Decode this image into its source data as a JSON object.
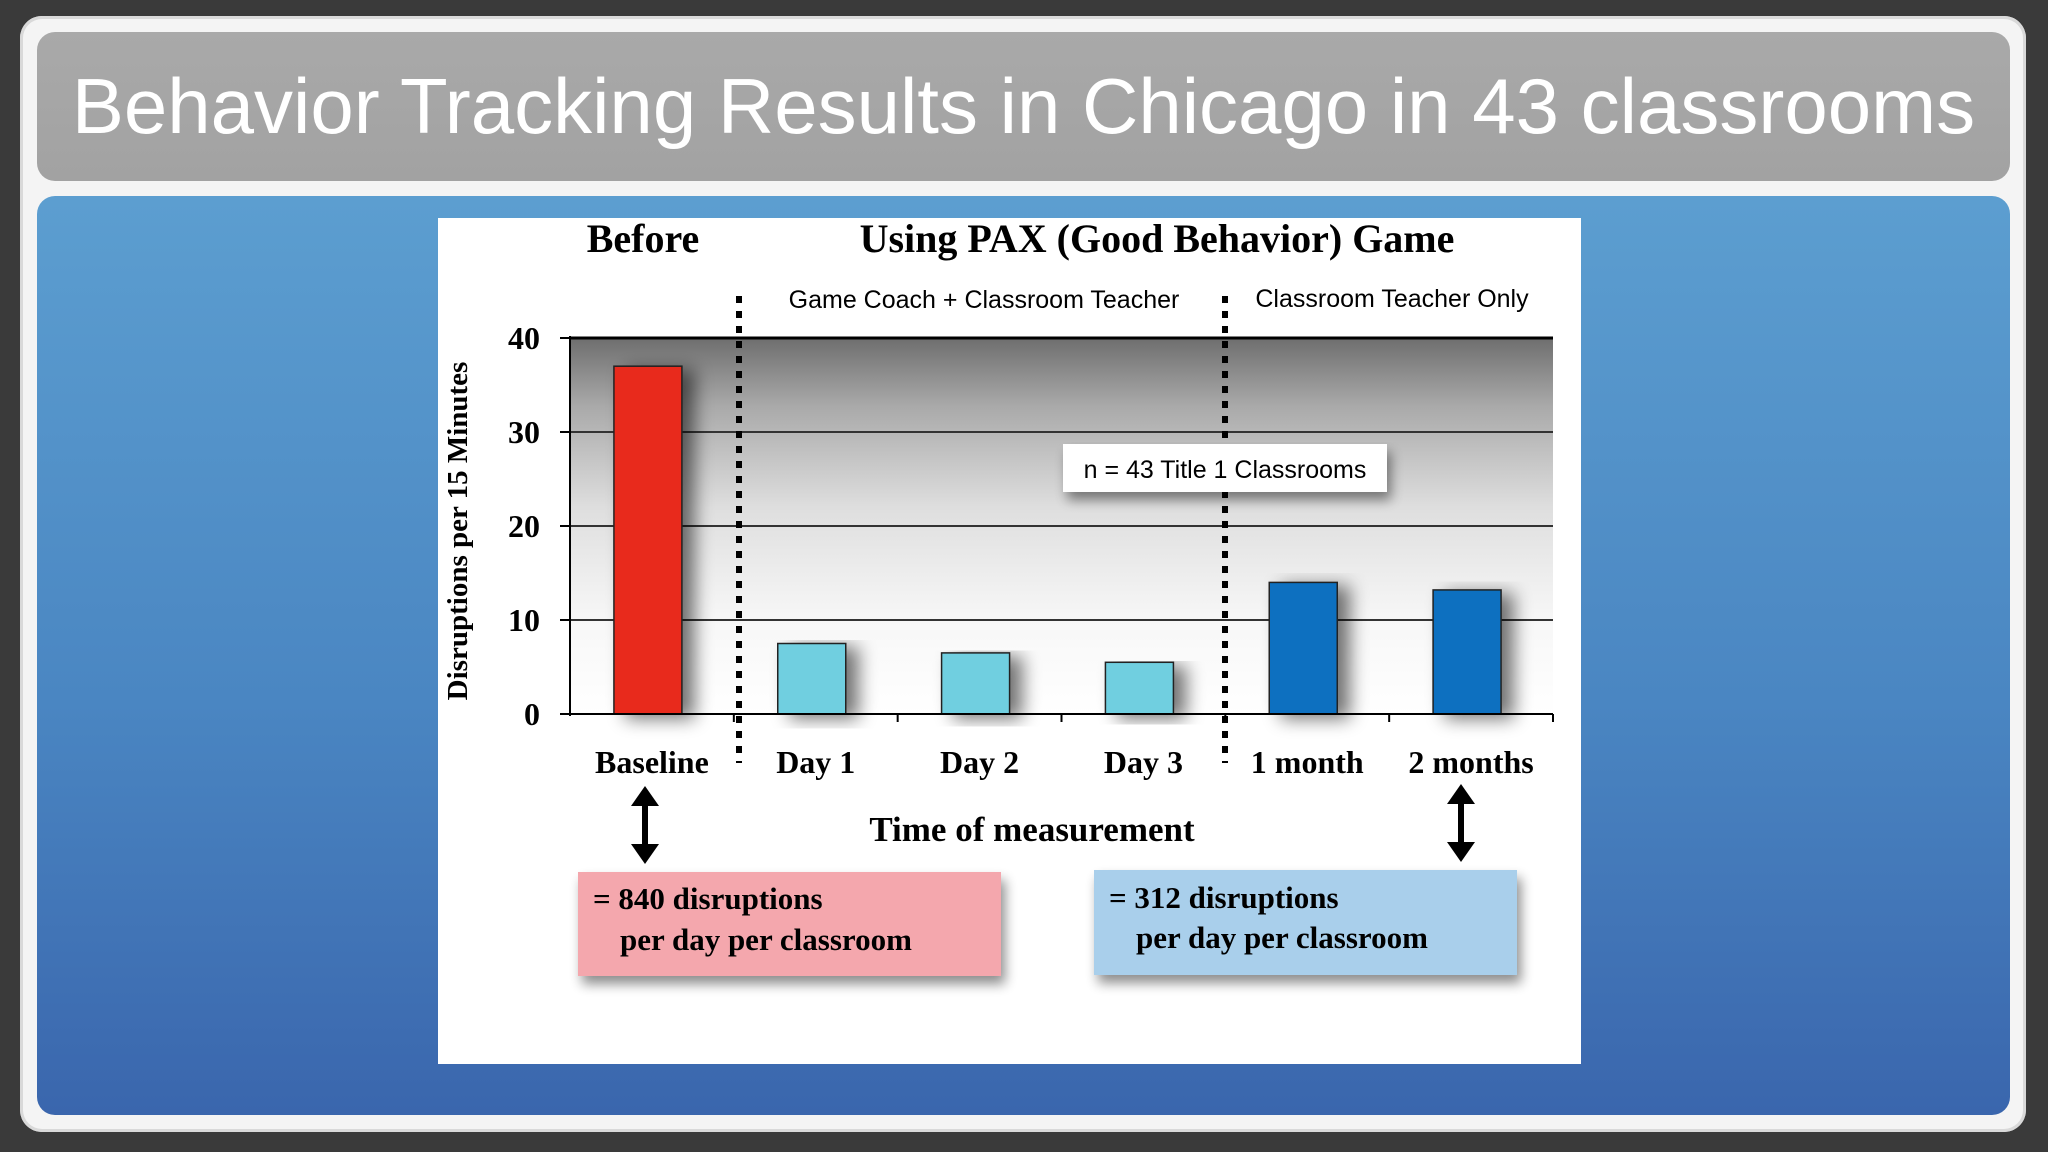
{
  "slide": {
    "title": "Behavior Tracking Results in Chicago in 43 classrooms"
  },
  "chart_data": {
    "type": "bar",
    "ylabel": "Disruptions per 15 Minutes",
    "xlabel": "Time of measurement",
    "ylim": [
      0,
      40
    ],
    "yticks": [
      0,
      10,
      20,
      30,
      40
    ],
    "categories": [
      "Baseline",
      "Day 1",
      "Day 2",
      "Day 3",
      "1 month",
      "2 months"
    ],
    "values": [
      37,
      7.5,
      6.5,
      5.5,
      14,
      13.2
    ],
    "bar_colors": [
      "#e8291c",
      "#6fcfe0",
      "#6fcfe0",
      "#6fcfe0",
      "#0a6fc0",
      "#0a6fc0"
    ],
    "grid": true,
    "section_headers": {
      "before": "Before",
      "using": "Using PAX (Good Behavior) Game"
    },
    "phase_labels": {
      "coach": "Game Coach + Classroom Teacher",
      "teacher_only": "Classroom Teacher Only"
    },
    "annotation": "n = 43 Title 1 Classrooms",
    "callouts": {
      "baseline": {
        "line1": "= 840 disruptions",
        "line2": "per day per classroom",
        "color": "#f4a7ad"
      },
      "followup": {
        "line1": "= 312 disruptions",
        "line2": "per day per classroom",
        "color": "#a9cfeb"
      }
    }
  }
}
